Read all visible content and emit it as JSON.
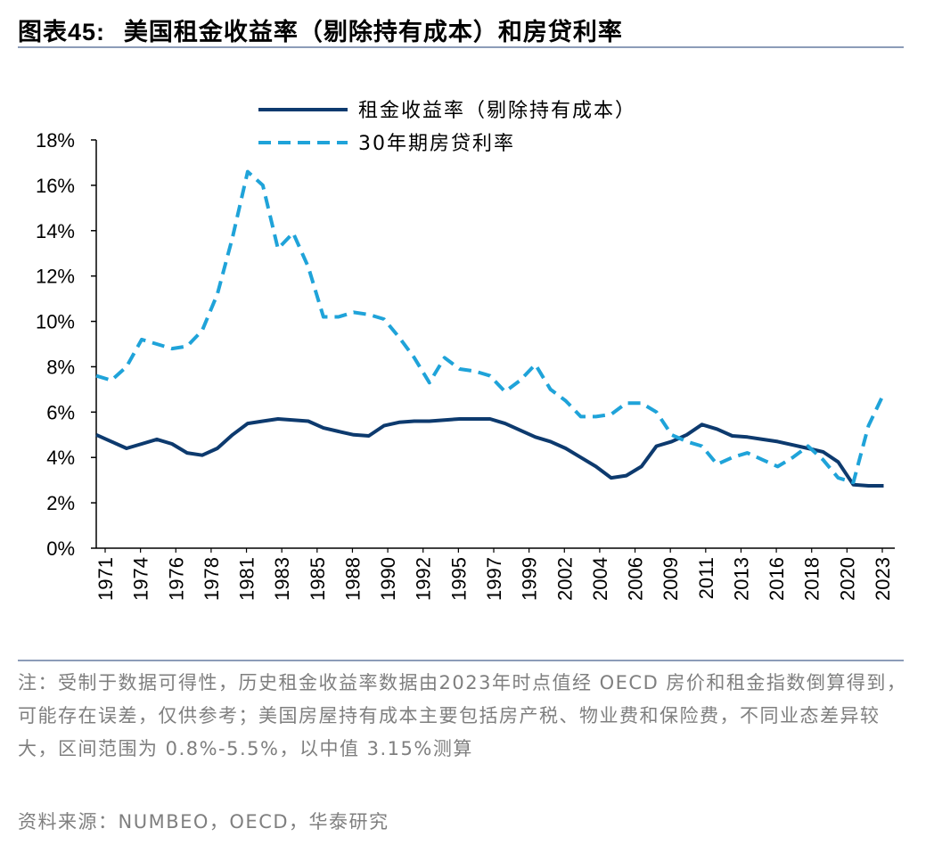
{
  "figure": {
    "number": "图表45:",
    "title": "美国租金收益率（剔除持有成本）和房贷利率"
  },
  "chart_data": {
    "type": "line",
    "ylim": [
      0,
      18
    ],
    "yticks": [
      "0%",
      "2%",
      "4%",
      "6%",
      "8%",
      "10%",
      "12%",
      "14%",
      "16%",
      "18%"
    ],
    "x_tick_labels": [
      "1971",
      "1974",
      "1976",
      "1978",
      "1981",
      "1983",
      "1985",
      "1988",
      "1990",
      "1992",
      "1995",
      "1997",
      "1999",
      "2002",
      "2004",
      "2006",
      "2009",
      "2011",
      "2013",
      "2016",
      "2018",
      "2020",
      "2023"
    ],
    "legend_position": "top-center",
    "series": [
      {
        "name": "租金收益率（剔除持有成本）",
        "color": "#0d3a6e",
        "style": "solid",
        "x": [
          1971,
          1972,
          1973,
          1974,
          1975,
          1976,
          1977,
          1978,
          1979,
          1980,
          1981,
          1982,
          1983,
          1984,
          1985,
          1986,
          1987,
          1988,
          1989,
          1990,
          1991,
          1992,
          1993,
          1994,
          1995,
          1996,
          1997,
          1998,
          1999,
          2000,
          2001,
          2002,
          2003,
          2004,
          2005,
          2006,
          2007,
          2008,
          2009,
          2010,
          2011,
          2012,
          2013,
          2014,
          2015,
          2016,
          2017,
          2018,
          2019,
          2020,
          2021,
          2022,
          2023
        ],
        "values": [
          5.0,
          4.7,
          4.4,
          4.6,
          4.8,
          4.6,
          4.2,
          4.1,
          4.4,
          5.0,
          5.5,
          5.6,
          5.7,
          5.65,
          5.6,
          5.3,
          5.15,
          5.0,
          4.95,
          5.4,
          5.55,
          5.6,
          5.6,
          5.65,
          5.7,
          5.7,
          5.7,
          5.5,
          5.2,
          4.9,
          4.7,
          4.4,
          4.0,
          3.6,
          3.1,
          3.2,
          3.6,
          4.5,
          4.7,
          5.0,
          5.45,
          5.25,
          4.95,
          4.9,
          4.8,
          4.7,
          4.55,
          4.4,
          4.25,
          3.8,
          2.8,
          2.75,
          2.75
        ]
      },
      {
        "name": "30年期房贷利率",
        "color": "#1fa3d9",
        "style": "dashed",
        "x": [
          1971,
          1972,
          1973,
          1974,
          1975,
          1976,
          1977,
          1978,
          1979,
          1980,
          1981,
          1982,
          1983,
          1984,
          1985,
          1986,
          1987,
          1988,
          1989,
          1990,
          1991,
          1992,
          1993,
          1994,
          1995,
          1996,
          1997,
          1998,
          1999,
          2000,
          2001,
          2002,
          2003,
          2004,
          2005,
          2006,
          2007,
          2008,
          2009,
          2010,
          2011,
          2012,
          2013,
          2014,
          2015,
          2016,
          2017,
          2018,
          2019,
          2020,
          2021,
          2022,
          2023
        ],
        "values": [
          7.6,
          7.4,
          8.0,
          9.2,
          9.0,
          8.8,
          8.9,
          9.6,
          11.2,
          13.7,
          16.6,
          16.0,
          13.2,
          13.9,
          12.4,
          10.2,
          10.2,
          10.4,
          10.3,
          10.1,
          9.3,
          8.4,
          7.3,
          8.4,
          7.9,
          7.8,
          7.6,
          6.9,
          7.4,
          8.1,
          7.0,
          6.5,
          5.8,
          5.8,
          5.9,
          6.4,
          6.4,
          6.0,
          5.0,
          4.7,
          4.5,
          3.7,
          4.0,
          4.2,
          3.9,
          3.6,
          4.0,
          4.5,
          3.9,
          3.1,
          2.9,
          5.4,
          6.8
        ]
      }
    ]
  },
  "note": "注：受制于数据可得性，历史租金收益率数据由2023年时点值经 OECD 房价和租金指数倒算得到，可能存在误差，仅供参考；美国房屋持有成本主要包括房产税、物业费和保险费，不同业态差异较大，区间范围为 0.8%-5.5%，以中值 3.15%测算",
  "source": "资料来源：NUMBEO，OECD，华泰研究"
}
